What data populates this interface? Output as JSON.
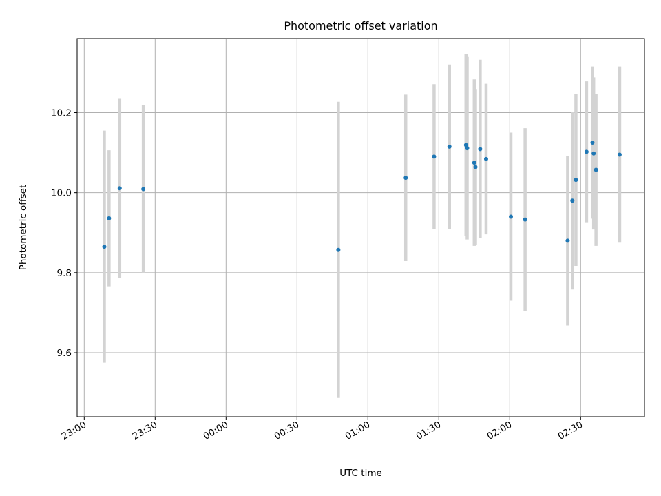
{
  "chart_data": {
    "type": "scatter",
    "title": "Photometric offset variation",
    "xlabel": "UTC time",
    "ylabel": "Photometric offset",
    "xlim": [
      "22:57",
      "02:57"
    ],
    "ylim": [
      9.44,
      10.385
    ],
    "grid": true,
    "x_ticks": [
      "23:00",
      "23:30",
      "00:00",
      "00:30",
      "01:00",
      "01:30",
      "02:00",
      "02:30"
    ],
    "y_ticks": [
      9.6,
      9.8,
      10.0,
      10.2
    ],
    "y_tick_labels": [
      "9.6",
      "9.8",
      "10.0",
      "10.2"
    ],
    "series": [
      {
        "marker_color": "#1f77b4",
        "errorbar_color": "#d3d3d3",
        "points": [
          {
            "t": "23:08:30",
            "y": 9.865,
            "err": 0.29
          },
          {
            "t": "23:10:30",
            "y": 9.936,
            "err": 0.17
          },
          {
            "t": "23:15:00",
            "y": 10.011,
            "err": 0.225
          },
          {
            "t": "23:25:00",
            "y": 10.009,
            "err": 0.21
          },
          {
            "t": "00:47:30",
            "y": 9.857,
            "err": 0.37
          },
          {
            "t": "01:16:00",
            "y": 10.037,
            "err": 0.208
          },
          {
            "t": "01:28:00",
            "y": 10.09,
            "err": 0.181
          },
          {
            "t": "01:34:30",
            "y": 10.115,
            "err": 0.205
          },
          {
            "t": "01:41:30",
            "y": 10.119,
            "err": 0.227
          },
          {
            "t": "01:42:00",
            "y": 10.111,
            "err": 0.228
          },
          {
            "t": "01:45:00",
            "y": 10.075,
            "err": 0.208
          },
          {
            "t": "01:45:30",
            "y": 10.064,
            "err": 0.195
          },
          {
            "t": "01:47:30",
            "y": 10.109,
            "err": 0.223
          },
          {
            "t": "01:50:00",
            "y": 10.084,
            "err": 0.188
          },
          {
            "t": "02:00:30",
            "y": 9.94,
            "err": 0.21
          },
          {
            "t": "02:06:30",
            "y": 9.933,
            "err": 0.228
          },
          {
            "t": "02:24:30",
            "y": 9.88,
            "err": 0.212
          },
          {
            "t": "02:26:30",
            "y": 9.98,
            "err": 0.222
          },
          {
            "t": "02:28:00",
            "y": 10.032,
            "err": 0.215
          },
          {
            "t": "02:32:30",
            "y": 10.102,
            "err": 0.176
          },
          {
            "t": "02:35:00",
            "y": 10.125,
            "err": 0.19
          },
          {
            "t": "02:35:30",
            "y": 10.098,
            "err": 0.19
          },
          {
            "t": "02:36:30",
            "y": 10.057,
            "err": 0.19
          },
          {
            "t": "02:46:30",
            "y": 10.095,
            "err": 0.22
          }
        ]
      }
    ]
  }
}
